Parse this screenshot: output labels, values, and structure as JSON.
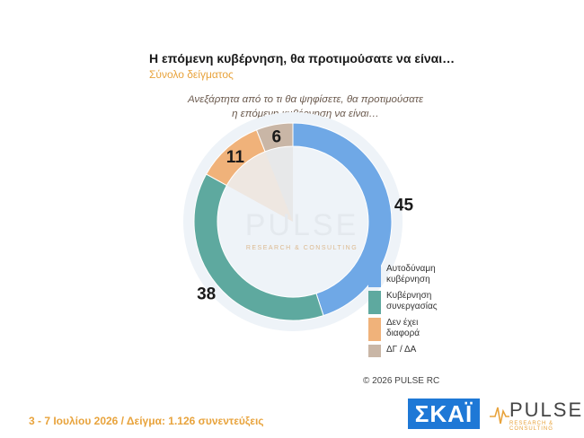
{
  "title": "Η επόμενη κυβέρνηση, θα προτιμούσατε να είναι…",
  "subtitle": "Σύνολο δείγματος",
  "question_line1": "Ανεξάρτητα από το τι θα ψηφίσετε, θα προτιμούσατε",
  "question_line2": "η επόμενη κυβέρνηση να είναι…",
  "watermark": "PULSE",
  "watermark_sub": "RESEARCH & CONSULTING",
  "copyright": "© 2026 PULSE RC",
  "footer": "3 - 7 Ιουλίου 2026  /  Δείγμα:  1.126 συνεντεύξεις",
  "logos": {
    "skai": "ΣΚΑΪ",
    "pulse": "PULSE",
    "pulse_sub": "RESEARCH & CONSULTING"
  },
  "colors": {
    "title": "#1a1a1a",
    "accent": "#e8a33c"
  },
  "chart_data": {
    "type": "pie",
    "labels": [
      "Αυτοδύναμη κυβέρνηση",
      "Κυβέρνηση συνεργασίας",
      "Δεν έχει διαφορά",
      "ΔΓ / ΔΑ"
    ],
    "values": [
      45,
      38,
      11,
      6
    ],
    "colors": [
      "#6fa8e6",
      "#5ea99f",
      "#f0b27a",
      "#c9b6a6"
    ],
    "legend_position": "right"
  }
}
